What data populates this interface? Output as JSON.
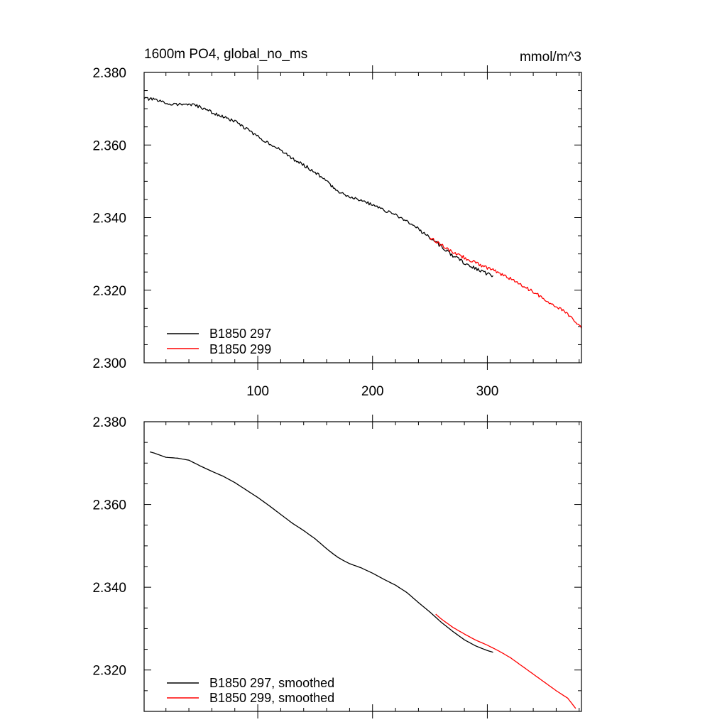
{
  "chart_data": [
    {
      "type": "line",
      "title": "1600m PO4, global_no_ms",
      "units": "mmol/m^3",
      "xlabel": "",
      "ylabel": "",
      "xlim": [
        1,
        382
      ],
      "ylim": [
        2.3,
        2.38
      ],
      "xticks": [
        100,
        200,
        300
      ],
      "xtick_labels": [
        "100",
        "200",
        "300"
      ],
      "yticks": [
        2.3,
        2.32,
        2.34,
        2.36,
        2.38
      ],
      "ytick_labels": [
        "2.300",
        "2.320",
        "2.340",
        "2.360",
        "2.380"
      ],
      "grid": false,
      "legend": "bottom-left",
      "series": [
        {
          "name": "B1850 297",
          "color": "#000000",
          "noisy": true,
          "x": [
            1,
            10,
            20,
            30,
            40,
            50,
            60,
            70,
            80,
            90,
            100,
            110,
            120,
            130,
            140,
            150,
            160,
            165,
            170,
            175,
            180,
            190,
            200,
            210,
            220,
            230,
            240,
            250,
            260,
            270,
            280,
            290,
            300,
            305
          ],
          "y": [
            2.3728,
            2.3725,
            2.3715,
            2.3712,
            2.3712,
            2.3705,
            2.369,
            2.3677,
            2.3665,
            2.3645,
            2.3623,
            2.3605,
            2.3585,
            2.3563,
            2.3545,
            2.3525,
            2.35,
            2.3485,
            2.3473,
            2.3465,
            2.3458,
            2.3448,
            2.3435,
            2.342,
            2.3408,
            2.339,
            2.3368,
            2.3345,
            2.332,
            2.3295,
            2.3275,
            2.326,
            2.3245,
            2.324
          ]
        },
        {
          "name": "B1850 299",
          "color": "#ff0000",
          "noisy": true,
          "x": [
            250,
            260,
            270,
            280,
            290,
            300,
            310,
            320,
            330,
            340,
            350,
            360,
            370,
            382
          ],
          "y": [
            2.3345,
            2.3325,
            2.3305,
            2.329,
            2.3275,
            2.3262,
            2.3248,
            2.3232,
            2.3213,
            2.3195,
            2.3175,
            2.3155,
            2.3135,
            2.3095
          ]
        }
      ]
    },
    {
      "type": "line",
      "title": "",
      "xlabel": "",
      "ylabel": "",
      "xlim": [
        1,
        382
      ],
      "ylim": [
        2.31,
        2.38
      ],
      "xticks": [
        100,
        200,
        300
      ],
      "yticks": [
        2.32,
        2.34,
        2.36,
        2.38
      ],
      "ytick_labels": [
        "2.320",
        "2.340",
        "2.360",
        "2.380"
      ],
      "grid": false,
      "legend": "bottom-left",
      "series": [
        {
          "name": "B1850 297, smoothed",
          "color": "#000000",
          "noisy": false,
          "x": [
            6,
            10,
            20,
            30,
            40,
            50,
            60,
            70,
            80,
            90,
            100,
            110,
            120,
            130,
            140,
            150,
            160,
            165,
            170,
            175,
            180,
            190,
            200,
            210,
            220,
            230,
            240,
            250,
            260,
            270,
            280,
            290,
            300,
            305
          ],
          "y": [
            2.3727,
            2.3724,
            2.3714,
            2.3712,
            2.3707,
            2.3693,
            2.368,
            2.3668,
            2.3653,
            2.3635,
            2.3617,
            2.3597,
            2.3576,
            2.3555,
            2.3537,
            2.3517,
            2.3493,
            2.3482,
            2.3472,
            2.3464,
            2.3457,
            2.3447,
            2.3434,
            2.3419,
            2.3405,
            2.3387,
            2.3363,
            2.334,
            2.3315,
            2.3293,
            2.3273,
            2.3258,
            2.3247,
            2.3243
          ]
        },
        {
          "name": "B1850 299, smoothed",
          "color": "#ff0000",
          "noisy": false,
          "x": [
            255,
            260,
            270,
            280,
            290,
            300,
            310,
            320,
            330,
            340,
            350,
            360,
            370,
            377
          ],
          "y": [
            2.3335,
            2.3323,
            2.3303,
            2.3287,
            2.3272,
            2.326,
            2.3246,
            2.323,
            2.321,
            2.319,
            2.317,
            2.315,
            2.3132,
            2.3107
          ]
        }
      ]
    }
  ]
}
